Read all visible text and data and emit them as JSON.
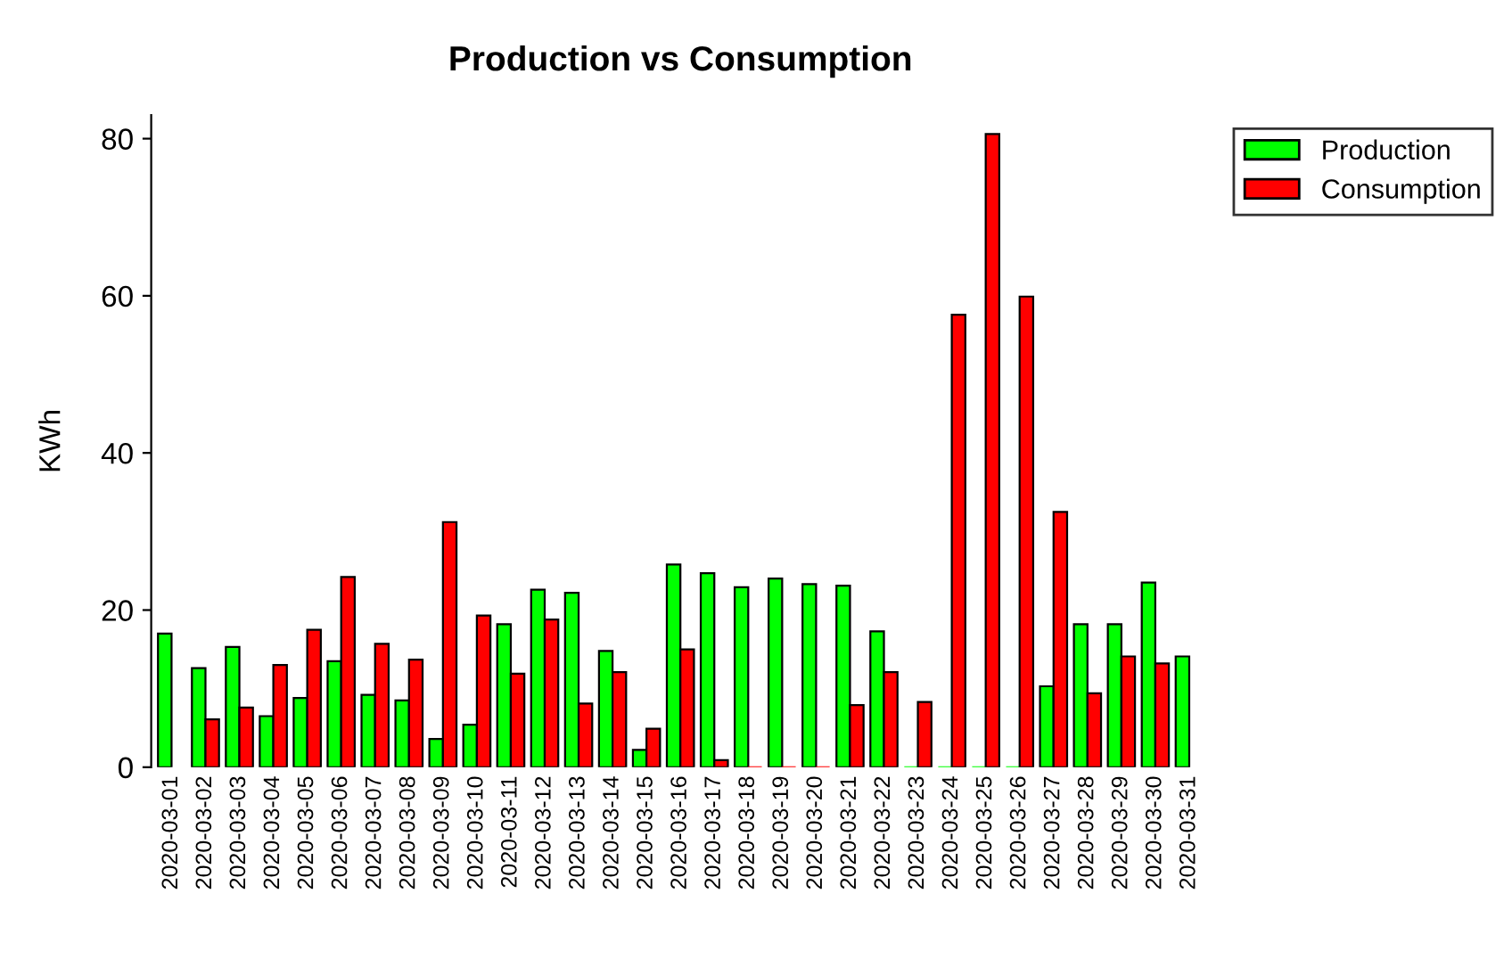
{
  "chart_data": {
    "type": "bar",
    "title": "Production vs Consumption",
    "ylabel": "KWh",
    "categories": [
      "2020-03-01",
      "2020-03-02",
      "2020-03-03",
      "2020-03-04",
      "2020-03-05",
      "2020-03-06",
      "2020-03-07",
      "2020-03-08",
      "2020-03-09",
      "2020-03-10",
      "2020-03-11",
      "2020-03-12",
      "2020-03-13",
      "2020-03-14",
      "2020-03-15",
      "2020-03-16",
      "2020-03-17",
      "2020-03-18",
      "2020-03-19",
      "2020-03-20",
      "2020-03-21",
      "2020-03-22",
      "2020-03-23",
      "2020-03-24",
      "2020-03-25",
      "2020-03-26",
      "2020-03-27",
      "2020-03-28",
      "2020-03-29",
      "2020-03-30",
      "2020-03-31"
    ],
    "series": [
      {
        "name": "Production",
        "color": "#00ff00",
        "values": [
          17.0,
          12.6,
          15.3,
          6.5,
          8.8,
          13.5,
          9.2,
          8.5,
          3.6,
          5.4,
          18.2,
          22.6,
          22.2,
          14.8,
          2.2,
          25.8,
          24.7,
          22.9,
          24.0,
          23.3,
          23.1,
          17.3,
          0,
          0,
          0,
          0,
          10.3,
          18.2,
          18.2,
          23.5,
          14.1
        ]
      },
      {
        "name": "Consumption",
        "color": "#ff0000",
        "values": [
          null,
          6.1,
          7.6,
          13.0,
          17.5,
          24.2,
          15.7,
          13.7,
          31.2,
          19.3,
          11.9,
          18.8,
          8.1,
          12.1,
          4.9,
          15.0,
          0.9,
          0,
          0,
          0,
          7.9,
          12.1,
          8.3,
          57.6,
          80.6,
          59.9,
          32.5,
          9.4,
          14.1,
          13.2,
          null
        ]
      }
    ],
    "ylim": [
      0,
      83
    ],
    "yticks": [
      0,
      20,
      40,
      60,
      80
    ],
    "grid": false,
    "legend": "right"
  }
}
